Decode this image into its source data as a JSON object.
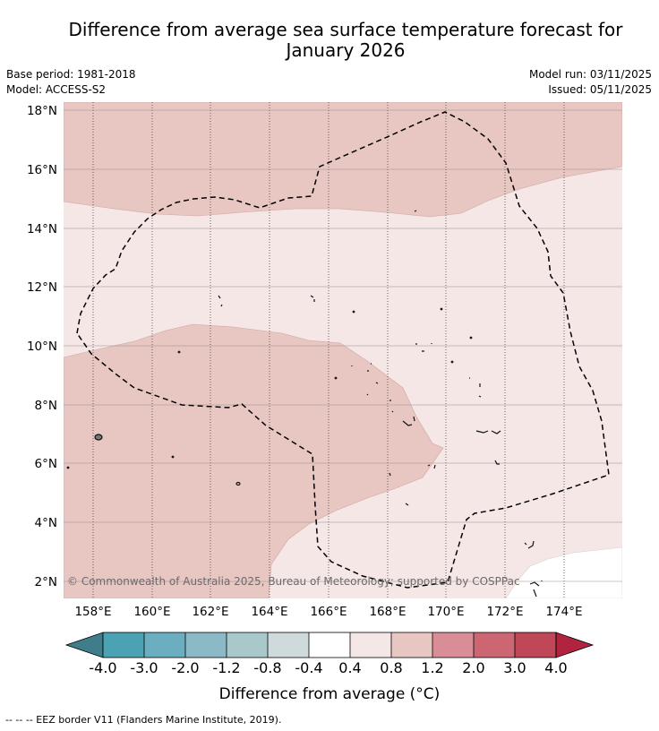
{
  "title": "Difference from average sea surface temperature forecast for January 2026",
  "title_lines": [
    "Difference from average sea surface temperature forecast for",
    "January 2026"
  ],
  "base_period": "Base period: 1981-2018",
  "model": "Model: ACCESS-S2",
  "model_run": "Model run: 03/11/2025",
  "issued": "Issued: 05/11/2025",
  "map": {
    "lon_range": [
      157,
      175.9
    ],
    "lat_range": [
      1.4,
      18.2
    ],
    "lon_ticks": [
      "158°E",
      "160°E",
      "162°E",
      "164°E",
      "166°E",
      "168°E",
      "170°E",
      "172°E",
      "174°E"
    ],
    "lat_ticks": [
      "2°N",
      "4°N",
      "6°N",
      "8°N",
      "10°N",
      "12°N",
      "14°N",
      "16°N",
      "18°N"
    ],
    "copyright": "© Commonwealth of Australia 2025, Bureau of Meteorology; supported by COSPPac"
  },
  "colorbar": {
    "title": "Difference from average (°C)",
    "tick_labels": [
      "-4.0",
      "-3.0",
      "-2.0",
      "-1.2",
      "-0.8",
      "-0.4",
      "0.4",
      "0.8",
      "1.2",
      "2.0",
      "3.0",
      "4.0"
    ],
    "colors": {
      "below": "#3e7d89",
      "bins": [
        "#4aa2b3",
        "#6aaebf",
        "#8bb9c5",
        "#a9c8cc",
        "#cfdadc",
        "#ffffff",
        "#f4e7e6",
        "#e8c6c2",
        "#d98e97",
        "#cc6672",
        "#c04758"
      ],
      "above": "#b12440"
    }
  },
  "footer": "--  --  -- EEZ border V11 (Flanders Marine Institute, 2019)."
}
